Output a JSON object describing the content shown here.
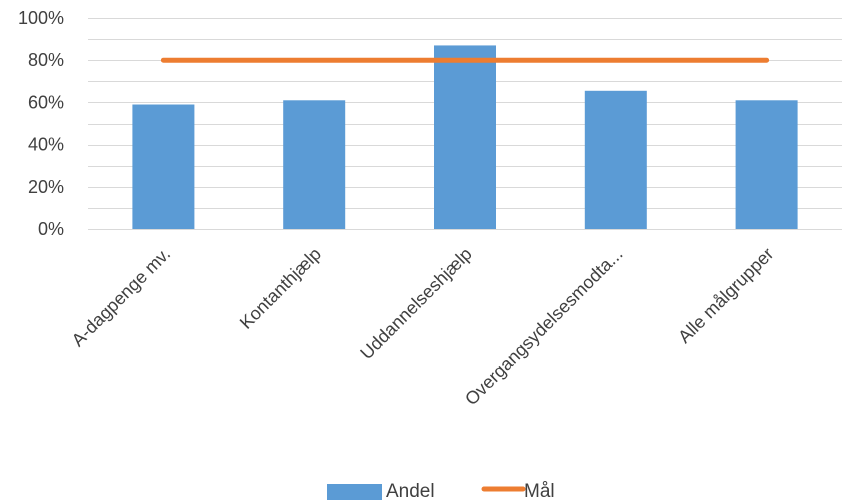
{
  "chart_data": {
    "type": "bar",
    "title": "",
    "xlabel": "",
    "ylabel": "",
    "ylim": [
      0,
      1
    ],
    "yticks": [
      "0%",
      "20%",
      "40%",
      "60%",
      "80%",
      "100%"
    ],
    "ytick_values": [
      0,
      0.2,
      0.4,
      0.6,
      0.8,
      1.0
    ],
    "grid": true,
    "categories": [
      "A-dagpenge mv.",
      "Kontanthjælp",
      "Uddannelseshjælp",
      "Overgangsydelsesmodta...",
      "Alle målgrupper"
    ],
    "series": [
      {
        "name": "Andel",
        "type": "bar",
        "color": "#5b9bd5",
        "values": [
          0.59,
          0.61,
          0.87,
          0.655,
          0.61
        ]
      },
      {
        "name": "Mål",
        "type": "line",
        "color": "#ed7d31",
        "values": [
          0.8,
          0.8,
          0.8,
          0.8,
          0.8
        ]
      }
    ],
    "legend_position": "bottom"
  }
}
